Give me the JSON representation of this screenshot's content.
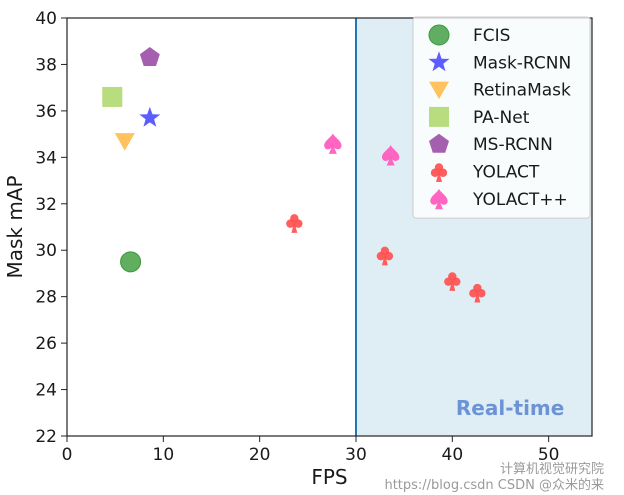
{
  "chart_data": {
    "type": "scatter",
    "xlabel": "FPS",
    "ylabel": "Mask mAP",
    "xlim": [
      0,
      54.5
    ],
    "ylim": [
      22,
      40
    ],
    "xticks": [
      0,
      10,
      20,
      30,
      40,
      50
    ],
    "yticks": [
      22,
      24,
      26,
      28,
      30,
      32,
      34,
      36,
      38,
      40
    ],
    "legend_position": "top-right",
    "realtime_region": {
      "x_start": 30,
      "label": "Real-time",
      "color": "#dfeef5",
      "label_color": "#6b93d6",
      "line_color": "#1f77b4"
    },
    "series": [
      {
        "name": "FCIS",
        "marker": "circle",
        "color": "#3a9a3a",
        "points": [
          {
            "x": 6.6,
            "y": 29.5
          }
        ]
      },
      {
        "name": "Mask-RCNN",
        "marker": "star",
        "color": "#4b4bff",
        "points": [
          {
            "x": 8.6,
            "y": 35.7
          }
        ]
      },
      {
        "name": "RetinaMask",
        "marker": "triangle-down",
        "color": "#ffbb4d",
        "points": [
          {
            "x": 6.0,
            "y": 34.7
          }
        ]
      },
      {
        "name": "PA-Net",
        "marker": "square",
        "color": "#b8dd7f",
        "points": [
          {
            "x": 4.7,
            "y": 36.6
          }
        ]
      },
      {
        "name": "MS-RCNN",
        "marker": "pentagon",
        "color": "#9b4ea6",
        "points": [
          {
            "x": 8.6,
            "y": 38.3
          }
        ]
      },
      {
        "name": "YOLACT",
        "marker": "club",
        "color": "#ff4d4d",
        "points": [
          {
            "x": 23.6,
            "y": 31.2
          },
          {
            "x": 33.0,
            "y": 29.8
          },
          {
            "x": 40.0,
            "y": 28.7
          },
          {
            "x": 42.6,
            "y": 28.2
          }
        ]
      },
      {
        "name": "YOLACT++",
        "marker": "spade",
        "color": "#ff55bb",
        "points": [
          {
            "x": 27.6,
            "y": 34.6
          },
          {
            "x": 33.6,
            "y": 34.1
          }
        ]
      }
    ]
  },
  "watermark": {
    "line1": "计算机视觉研究院",
    "line2": "https://blog.csdn CSDN @众米的来"
  }
}
